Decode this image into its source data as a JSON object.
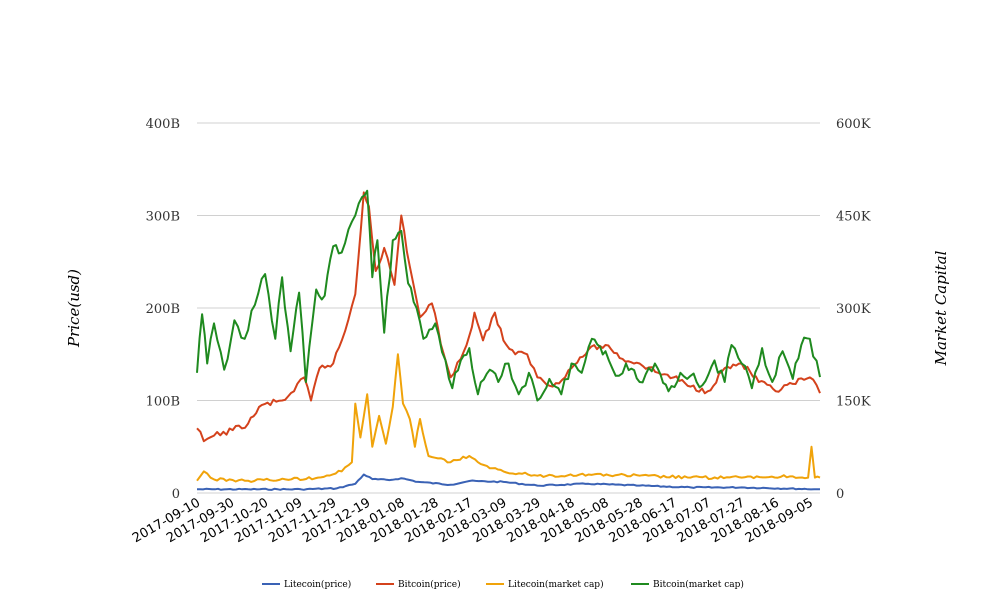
{
  "chart_data": {
    "type": "line",
    "ylabel_left": "Price(usd)",
    "ylabel_right": "Market Capital",
    "y_left_ticks": [
      "0",
      "100B",
      "200B",
      "300B",
      "400B"
    ],
    "y_left_range": [
      0,
      400
    ],
    "y_right_ticks": [
      "0",
      "150K",
      "300K",
      "450K",
      "600K"
    ],
    "y_right_range": [
      0,
      600
    ],
    "x_range": [
      "2017-09-10",
      "2018-09-11"
    ],
    "x_ticks": [
      "2017-09-10",
      "2017-09-30",
      "2017-10-20",
      "2017-11-09",
      "2017-11-29",
      "2017-12-19",
      "2018-01-08",
      "2018-01-28",
      "2018-02-17",
      "2018-03-09",
      "2018-03-29",
      "2018-04-18",
      "2018-05-08",
      "2018-05-28",
      "2018-06-17",
      "2018-07-07",
      "2018-07-27",
      "2018-08-16",
      "2018-09-05"
    ],
    "series": [
      {
        "name": "Litecoin(price)",
        "color": "#3a62b5",
        "axis": "left",
        "points": [
          [
            "2017-09-10",
            4
          ],
          [
            "2017-10-10",
            4
          ],
          [
            "2017-11-10",
            4
          ],
          [
            "2017-12-01",
            5
          ],
          [
            "2017-12-12",
            10
          ],
          [
            "2017-12-17",
            20
          ],
          [
            "2017-12-22",
            15
          ],
          [
            "2018-01-01",
            14
          ],
          [
            "2018-01-08",
            16
          ],
          [
            "2018-01-18",
            12
          ],
          [
            "2018-02-06",
            9
          ],
          [
            "2018-02-17",
            13
          ],
          [
            "2018-03-09",
            12
          ],
          [
            "2018-03-29",
            8
          ],
          [
            "2018-04-28",
            10
          ],
          [
            "2018-05-28",
            8
          ],
          [
            "2018-06-27",
            6
          ],
          [
            "2018-07-27",
            6
          ],
          [
            "2018-09-11",
            4
          ]
        ]
      },
      {
        "name": "Bitcoin(price)",
        "color": "#d4421c",
        "axis": "left",
        "points": [
          [
            "2017-09-10",
            70
          ],
          [
            "2017-09-14",
            56
          ],
          [
            "2017-09-20",
            62
          ],
          [
            "2017-10-01",
            68
          ],
          [
            "2017-10-10",
            75
          ],
          [
            "2017-10-18",
            95
          ],
          [
            "2017-10-30",
            100
          ],
          [
            "2017-11-06",
            110
          ],
          [
            "2017-11-12",
            125
          ],
          [
            "2017-11-16",
            100
          ],
          [
            "2017-11-21",
            135
          ],
          [
            "2017-11-29",
            140
          ],
          [
            "2017-12-06",
            175
          ],
          [
            "2017-12-12",
            215
          ],
          [
            "2017-12-17",
            325
          ],
          [
            "2017-12-20",
            310
          ],
          [
            "2017-12-24",
            240
          ],
          [
            "2017-12-29",
            265
          ],
          [
            "2018-01-04",
            225
          ],
          [
            "2018-01-08",
            300
          ],
          [
            "2018-01-13",
            245
          ],
          [
            "2018-01-19",
            190
          ],
          [
            "2018-01-26",
            205
          ],
          [
            "2018-02-02",
            150
          ],
          [
            "2018-02-06",
            125
          ],
          [
            "2018-02-12",
            145
          ],
          [
            "2018-02-17",
            170
          ],
          [
            "2018-02-20",
            195
          ],
          [
            "2018-02-25",
            165
          ],
          [
            "2018-03-04",
            195
          ],
          [
            "2018-03-09",
            165
          ],
          [
            "2018-03-16",
            150
          ],
          [
            "2018-03-23",
            150
          ],
          [
            "2018-03-29",
            125
          ],
          [
            "2018-04-07",
            115
          ],
          [
            "2018-04-18",
            135
          ],
          [
            "2018-04-28",
            155
          ],
          [
            "2018-05-08",
            160
          ],
          [
            "2018-05-18",
            145
          ],
          [
            "2018-05-28",
            140
          ],
          [
            "2018-06-08",
            130
          ],
          [
            "2018-06-17",
            125
          ],
          [
            "2018-06-27",
            115
          ],
          [
            "2018-07-07",
            110
          ],
          [
            "2018-07-17",
            135
          ],
          [
            "2018-07-27",
            140
          ],
          [
            "2018-08-06",
            120
          ],
          [
            "2018-08-16",
            110
          ],
          [
            "2018-08-26",
            118
          ],
          [
            "2018-09-05",
            125
          ],
          [
            "2018-09-11",
            108
          ]
        ]
      },
      {
        "name": "Litecoin(market cap)",
        "color": "#f0a30a",
        "axis": "right",
        "points": [
          [
            "2017-09-10",
            20
          ],
          [
            "2017-09-14",
            35
          ],
          [
            "2017-09-20",
            22
          ],
          [
            "2017-10-10",
            20
          ],
          [
            "2017-11-01",
            22
          ],
          [
            "2017-11-20",
            25
          ],
          [
            "2017-12-04",
            35
          ],
          [
            "2017-12-10",
            50
          ],
          [
            "2017-12-12",
            145
          ],
          [
            "2017-12-15",
            90
          ],
          [
            "2017-12-19",
            160
          ],
          [
            "2017-12-22",
            75
          ],
          [
            "2017-12-26",
            125
          ],
          [
            "2017-12-30",
            80
          ],
          [
            "2018-01-03",
            140
          ],
          [
            "2018-01-06",
            225
          ],
          [
            "2018-01-09",
            145
          ],
          [
            "2018-01-13",
            120
          ],
          [
            "2018-01-16",
            75
          ],
          [
            "2018-01-19",
            120
          ],
          [
            "2018-01-24",
            60
          ],
          [
            "2018-02-06",
            50
          ],
          [
            "2018-02-17",
            60
          ],
          [
            "2018-02-22",
            50
          ],
          [
            "2018-03-01",
            40
          ],
          [
            "2018-03-09",
            35
          ],
          [
            "2018-03-29",
            28
          ],
          [
            "2018-04-28",
            30
          ],
          [
            "2018-05-28",
            28
          ],
          [
            "2018-06-27",
            25
          ],
          [
            "2018-07-27",
            25
          ],
          [
            "2018-08-26",
            27
          ],
          [
            "2018-09-04",
            25
          ],
          [
            "2018-09-06",
            75
          ],
          [
            "2018-09-08",
            25
          ],
          [
            "2018-09-11",
            25
          ]
        ]
      },
      {
        "name": "Bitcoin(market cap)",
        "color": "#1f8a1f",
        "axis": "right",
        "points": [
          [
            "2017-09-10",
            195
          ],
          [
            "2017-09-13",
            290
          ],
          [
            "2017-09-16",
            210
          ],
          [
            "2017-09-20",
            275
          ],
          [
            "2017-09-26",
            200
          ],
          [
            "2017-10-02",
            280
          ],
          [
            "2017-10-08",
            250
          ],
          [
            "2017-10-14",
            305
          ],
          [
            "2017-10-20",
            355
          ],
          [
            "2017-10-26",
            250
          ],
          [
            "2017-10-30",
            350
          ],
          [
            "2017-11-04",
            230
          ],
          [
            "2017-11-09",
            325
          ],
          [
            "2017-11-13",
            180
          ],
          [
            "2017-11-19",
            330
          ],
          [
            "2017-11-24",
            320
          ],
          [
            "2017-11-29",
            400
          ],
          [
            "2017-12-04",
            390
          ],
          [
            "2017-12-10",
            440
          ],
          [
            "2017-12-16",
            480
          ],
          [
            "2017-12-19",
            490
          ],
          [
            "2017-12-22",
            350
          ],
          [
            "2017-12-25",
            410
          ],
          [
            "2017-12-29",
            260
          ],
          [
            "2018-01-03",
            410
          ],
          [
            "2018-01-08",
            425
          ],
          [
            "2018-01-12",
            340
          ],
          [
            "2018-01-17",
            300
          ],
          [
            "2018-01-21",
            250
          ],
          [
            "2018-01-28",
            275
          ],
          [
            "2018-02-03",
            215
          ],
          [
            "2018-02-07",
            170
          ],
          [
            "2018-02-12",
            215
          ],
          [
            "2018-02-17",
            235
          ],
          [
            "2018-02-22",
            160
          ],
          [
            "2018-03-01",
            200
          ],
          [
            "2018-03-06",
            180
          ],
          [
            "2018-03-12",
            210
          ],
          [
            "2018-03-18",
            160
          ],
          [
            "2018-03-24",
            195
          ],
          [
            "2018-03-29",
            150
          ],
          [
            "2018-04-05",
            185
          ],
          [
            "2018-04-12",
            160
          ],
          [
            "2018-04-18",
            210
          ],
          [
            "2018-04-24",
            195
          ],
          [
            "2018-04-30",
            250
          ],
          [
            "2018-05-08",
            230
          ],
          [
            "2018-05-14",
            190
          ],
          [
            "2018-05-20",
            210
          ],
          [
            "2018-05-28",
            180
          ],
          [
            "2018-06-06",
            210
          ],
          [
            "2018-06-14",
            165
          ],
          [
            "2018-06-21",
            195
          ],
          [
            "2018-06-27",
            190
          ],
          [
            "2018-07-04",
            175
          ],
          [
            "2018-07-11",
            215
          ],
          [
            "2018-07-17",
            180
          ],
          [
            "2018-07-21",
            240
          ],
          [
            "2018-07-27",
            210
          ],
          [
            "2018-08-02",
            170
          ],
          [
            "2018-08-08",
            235
          ],
          [
            "2018-08-14",
            180
          ],
          [
            "2018-08-20",
            230
          ],
          [
            "2018-08-26",
            185
          ],
          [
            "2018-08-31",
            240
          ],
          [
            "2018-09-05",
            250
          ],
          [
            "2018-09-11",
            188
          ]
        ]
      }
    ]
  }
}
